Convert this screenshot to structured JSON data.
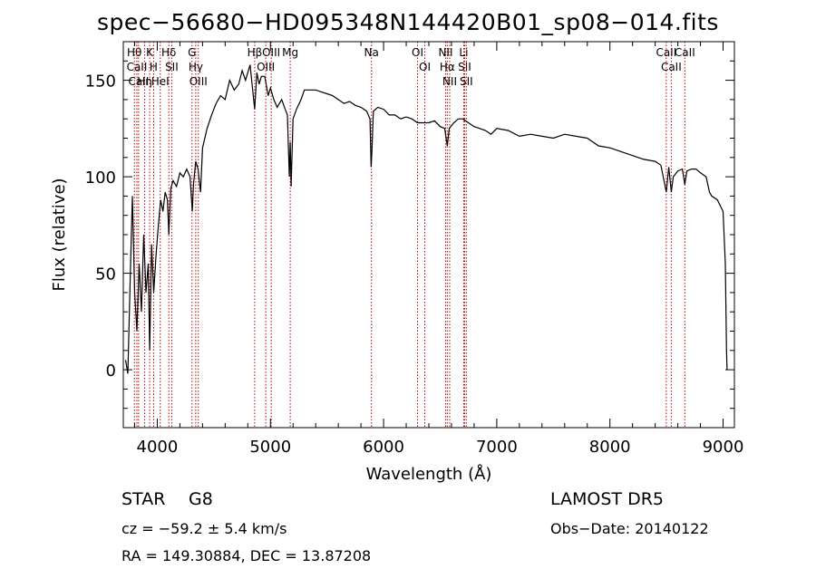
{
  "title": "spec−56680−HD095348N144420B01_sp08−014.fits",
  "info": {
    "class": "STAR",
    "subclass": "G8",
    "survey": "LAMOST DR5",
    "cz": "cz = −59.2 ± 5.4 km/s",
    "obsdate": "Obs−Date: 20140122",
    "radec": "RA = 149.30884, DEC =  13.87208"
  },
  "chart_data": {
    "type": "line",
    "xlabel": "Wavelength (Å)",
    "ylabel": "Flux (relative)",
    "xlim": [
      3700,
      9100
    ],
    "ylim": [
      -30,
      170
    ],
    "xticks": [
      4000,
      5000,
      6000,
      7000,
      8000,
      9000
    ],
    "yticks": [
      0,
      50,
      100,
      150
    ],
    "series": [
      {
        "x": [
          3720,
          3740,
          3760,
          3780,
          3800,
          3820,
          3840,
          3860,
          3880,
          3900,
          3920,
          3933,
          3950,
          3968,
          3990,
          4010,
          4030,
          4050,
          4070,
          4090,
          4102,
          4120,
          4140,
          4170,
          4200,
          4230,
          4260,
          4290,
          4310,
          4320,
          4340,
          4360,
          4383,
          4400,
          4440,
          4480,
          4520,
          4560,
          4600,
          4640,
          4680,
          4720,
          4750,
          4780,
          4820,
          4861,
          4880,
          4900,
          4920,
          4950,
          4980,
          5000,
          5030,
          5060,
          5100,
          5130,
          5150,
          5167,
          5175,
          5183,
          5200,
          5230,
          5270,
          5300,
          5350,
          5400,
          5450,
          5500,
          5550,
          5600,
          5650,
          5700,
          5750,
          5800,
          5850,
          5880,
          5890,
          5896,
          5910,
          5950,
          6000,
          6050,
          6100,
          6150,
          6200,
          6250,
          6300,
          6350,
          6400,
          6450,
          6500,
          6540,
          6563,
          6580,
          6620,
          6660,
          6700,
          6750,
          6800,
          6850,
          6900,
          6950,
          7000,
          7100,
          7200,
          7300,
          7400,
          7500,
          7600,
          7700,
          7800,
          7900,
          8000,
          8100,
          8200,
          8300,
          8400,
          8450,
          8498,
          8520,
          8542,
          8560,
          8600,
          8640,
          8662,
          8680,
          8720,
          8760,
          8800,
          8850,
          8880,
          8900,
          8950,
          9000,
          9020,
          9030,
          9035
        ],
        "y": [
          5,
          -2,
          45,
          90,
          40,
          20,
          55,
          30,
          70,
          40,
          55,
          10,
          65,
          40,
          60,
          75,
          88,
          82,
          92,
          88,
          70,
          94,
          98,
          95,
          102,
          100,
          104,
          100,
          82,
          96,
          108,
          104,
          92,
          115,
          125,
          132,
          138,
          142,
          140,
          150,
          145,
          148,
          155,
          150,
          158,
          135,
          154,
          148,
          152,
          152,
          142,
          146,
          140,
          136,
          140,
          135,
          132,
          100,
          118,
          95,
          130,
          135,
          140,
          145,
          145,
          145,
          144,
          143,
          142,
          140,
          138,
          139,
          137,
          136,
          134,
          130,
          105,
          112,
          134,
          136,
          135,
          132,
          132,
          130,
          131,
          130,
          128,
          128,
          128,
          129,
          126,
          125,
          116,
          125,
          128,
          130,
          130,
          128,
          126,
          125,
          124,
          122,
          125,
          124,
          121,
          122,
          121,
          120,
          122,
          121,
          120,
          116,
          115,
          113,
          111,
          109,
          108,
          106,
          92,
          105,
          92,
          100,
          103,
          104,
          96,
          103,
          104,
          104,
          102,
          100,
          92,
          90,
          88,
          82,
          55,
          10,
          0
        ]
      }
    ],
    "lines": [
      {
        "wave": 3798,
        "label": "Hθ"
      },
      {
        "wave": 3820,
        "label": "CaII"
      },
      {
        "wave": 3835,
        "label": "CaII"
      },
      {
        "wave": 3889,
        "label": "Hη"
      },
      {
        "wave": 3933,
        "label": "K"
      },
      {
        "wave": 3968,
        "label": "H"
      },
      {
        "wave": 4026,
        "label": "HeI"
      },
      {
        "wave": 4102,
        "label": "Hδ"
      },
      {
        "wave": 4128,
        "label": "SII"
      },
      {
        "wave": 4307,
        "label": "G"
      },
      {
        "wave": 4340,
        "label": "Hγ"
      },
      {
        "wave": 4363,
        "label": "OIII"
      },
      {
        "wave": 4861,
        "label": "Hβ"
      },
      {
        "wave": 4959,
        "label": "OIII"
      },
      {
        "wave": 5007,
        "label": "OIII"
      },
      {
        "wave": 5175,
        "label": "Mg"
      },
      {
        "wave": 5893,
        "label": "Na"
      },
      {
        "wave": 6300,
        "label": "OI"
      },
      {
        "wave": 6364,
        "label": "OI"
      },
      {
        "wave": 6548,
        "label": "NII"
      },
      {
        "wave": 6563,
        "label": "Hα"
      },
      {
        "wave": 6584,
        "label": "NII"
      },
      {
        "wave": 6708,
        "label": "Li"
      },
      {
        "wave": 6716,
        "label": "SII"
      },
      {
        "wave": 6731,
        "label": "SII"
      },
      {
        "wave": 8498,
        "label": "CaII"
      },
      {
        "wave": 8542,
        "label": "CaII"
      },
      {
        "wave": 8662,
        "label": "CaII"
      }
    ]
  }
}
